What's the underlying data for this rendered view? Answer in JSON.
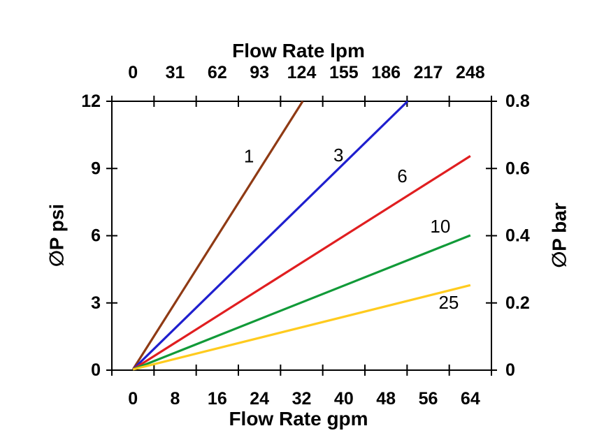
{
  "chart_data": {
    "type": "line",
    "background": "#ffffff",
    "grid": "off",
    "legend": "inline-labels-on-curves",
    "axes": {
      "top": {
        "title": "Flow Rate lpm",
        "tick_labels": [
          "0",
          "31",
          "62",
          "93",
          "124",
          "155",
          "186",
          "217",
          "248"
        ]
      },
      "bottom": {
        "title": "Flow Rate gpm",
        "tick_labels": [
          "0",
          "8",
          "16",
          "24",
          "32",
          "40",
          "48",
          "56",
          "64"
        ],
        "range": [
          0,
          64
        ]
      },
      "left": {
        "title": "∅P psi",
        "tick_labels": [
          "12",
          "9",
          "6",
          "3",
          "0"
        ],
        "range": [
          0,
          12
        ]
      },
      "right": {
        "title": "∅P bar",
        "tick_labels": [
          "0.8",
          "0.6",
          "0.4",
          "0.2",
          "0"
        ],
        "range": [
          0,
          0.8
        ]
      }
    },
    "series": [
      {
        "label": "1",
        "color": "#8F3A14",
        "points": [
          [
            0,
            0
          ],
          [
            32.2,
            12
          ]
        ],
        "label_at": [
          22.0,
          9.55
        ]
      },
      {
        "label": "3",
        "color": "#1F1FCE",
        "points": [
          [
            0,
            0
          ],
          [
            52.1,
            12
          ]
        ],
        "label_at": [
          39.0,
          9.6
        ]
      },
      {
        "label": "6",
        "color": "#E01E20",
        "points": [
          [
            0,
            0
          ],
          [
            64,
            9.55
          ]
        ],
        "label_at": [
          51.1,
          8.65
        ]
      },
      {
        "label": "10",
        "color": "#119A38",
        "points": [
          [
            0,
            0
          ],
          [
            64,
            6.0
          ]
        ],
        "label_at": [
          58.3,
          6.4
        ]
      },
      {
        "label": "25",
        "color": "#FFCB1E",
        "points": [
          [
            0,
            0
          ],
          [
            64,
            3.77
          ]
        ],
        "label_at": [
          59.9,
          3.0
        ]
      }
    ]
  }
}
